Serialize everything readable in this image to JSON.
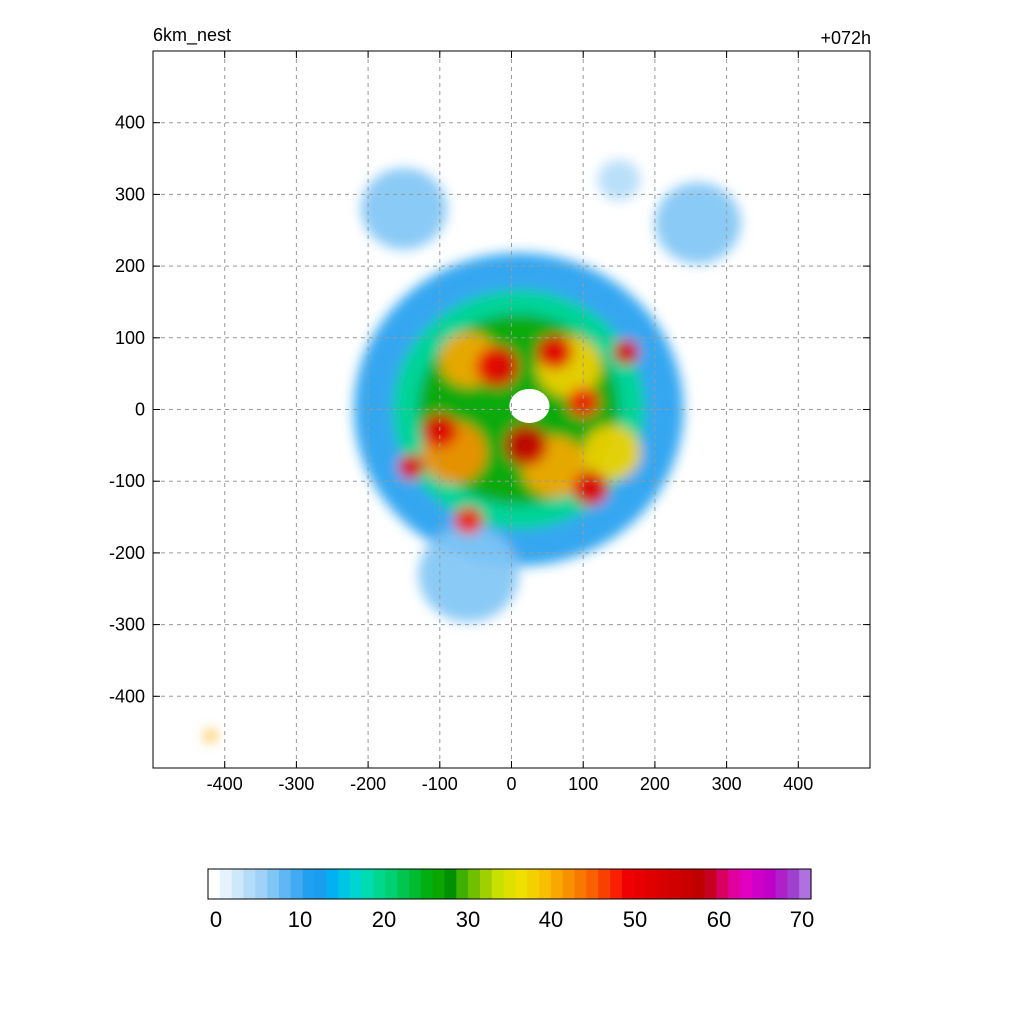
{
  "chart_data": {
    "type": "heatmap",
    "title_left": "6km_nest",
    "title_right": "+072h",
    "xlabel": "",
    "ylabel": "",
    "xlim": [
      -500,
      500
    ],
    "ylim": [
      -500,
      500
    ],
    "x_ticks": [
      -400,
      -300,
      -200,
      -100,
      0,
      100,
      200,
      300,
      400
    ],
    "y_ticks": [
      400,
      300,
      200,
      100,
      0,
      -100,
      -200,
      -300,
      -400
    ],
    "grid": true,
    "colorbar": {
      "min": 0,
      "max": 70,
      "tick_labels": [
        "0",
        "10",
        "20",
        "30",
        "40",
        "50",
        "60",
        "70"
      ],
      "tick_values": [
        0,
        10,
        20,
        30,
        40,
        50,
        60,
        70
      ],
      "colors": [
        "#ffffff",
        "#e6f3ff",
        "#cde7fb",
        "#b4dcf8",
        "#9fd2f6",
        "#80c6f5",
        "#5fb8f4",
        "#40aaf3",
        "#22a0f0",
        "#1a9cef",
        "#00b0f0",
        "#00c6e6",
        "#00d6d0",
        "#00dcb0",
        "#00d890",
        "#00d070",
        "#00c650",
        "#00bc30",
        "#00b010",
        "#0aa600",
        "#009000",
        "#40b000",
        "#70c000",
        "#a0d000",
        "#c8e000",
        "#e0e000",
        "#f0e000",
        "#f4d000",
        "#f8c000",
        "#f8a800",
        "#f89000",
        "#f87800",
        "#f86000",
        "#f84000",
        "#f82000",
        "#f00000",
        "#e80000",
        "#e00000",
        "#d80000",
        "#d00000",
        "#c80000",
        "#c00000",
        "#c80020",
        "#d80060",
        "#e000a0",
        "#e000c0",
        "#d000c8",
        "#c000c8",
        "#b020c8",
        "#a040d0",
        "#b070e0"
      ]
    },
    "field_blobs": [
      {
        "x": 10,
        "y": 0,
        "r": 230,
        "v": 12
      },
      {
        "x": 10,
        "y": 0,
        "r": 175,
        "v": 20
      },
      {
        "x": 10,
        "y": 0,
        "r": 140,
        "v": 27
      },
      {
        "x": -150,
        "y": 280,
        "r": 60,
        "v": 8
      },
      {
        "x": 260,
        "y": 260,
        "r": 60,
        "v": 8
      },
      {
        "x": 150,
        "y": 320,
        "r": 30,
        "v": 5
      },
      {
        "x": -60,
        "y": -230,
        "r": 70,
        "v": 8
      },
      {
        "x": 80,
        "y": 60,
        "r": 45,
        "v": 38
      },
      {
        "x": -60,
        "y": 70,
        "r": 40,
        "v": 40
      },
      {
        "x": -80,
        "y": -60,
        "r": 45,
        "v": 42
      },
      {
        "x": 60,
        "y": -80,
        "r": 45,
        "v": 40
      },
      {
        "x": 140,
        "y": -60,
        "r": 40,
        "v": 38
      },
      {
        "x": -20,
        "y": 60,
        "r": 30,
        "v": 50
      },
      {
        "x": 60,
        "y": 80,
        "r": 25,
        "v": 52
      },
      {
        "x": -100,
        "y": -30,
        "r": 25,
        "v": 52
      },
      {
        "x": 20,
        "y": -50,
        "r": 30,
        "v": 55
      },
      {
        "x": 110,
        "y": -110,
        "r": 25,
        "v": 50
      },
      {
        "x": 160,
        "y": 80,
        "r": 18,
        "v": 52
      },
      {
        "x": -140,
        "y": -80,
        "r": 18,
        "v": 50
      },
      {
        "x": -60,
        "y": -155,
        "r": 20,
        "v": 48
      },
      {
        "x": 100,
        "y": 10,
        "r": 22,
        "v": 48
      },
      {
        "x": -420,
        "y": -455,
        "r": 8,
        "v": 40
      }
    ],
    "eye": {
      "x": 25,
      "y": 5,
      "r": 28
    }
  }
}
